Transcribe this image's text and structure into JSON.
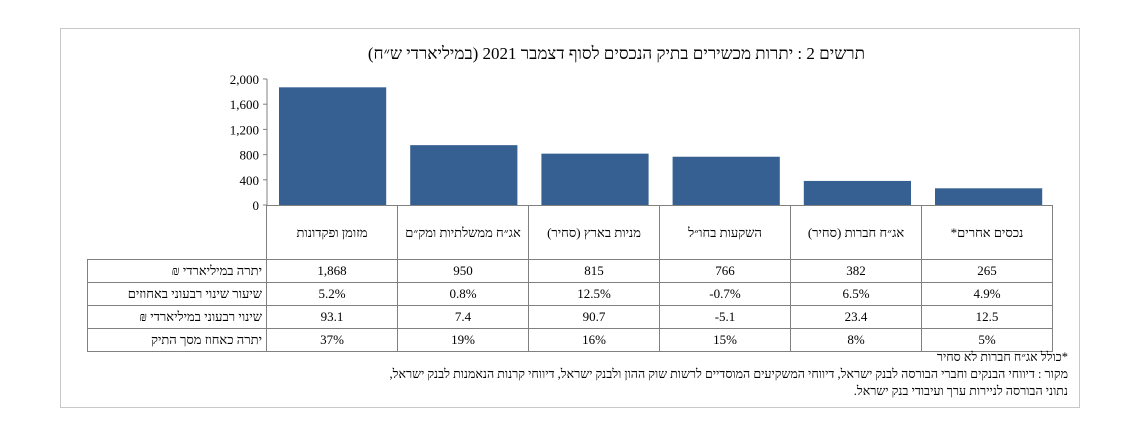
{
  "chart_data": {
    "type": "bar",
    "title": "תרשים 2 : יתרות מכשירים בתיק הנכסים לסוף דצמבר 2021 (במיליארדי ש״ח)",
    "categories": [
      "מזומן ופקדונות",
      "אג״ח ממשלתיות ומק״ם",
      "מניות בארץ (סחיר)",
      "השקעות בחו״ל",
      "אג״ח חברות (סחיר)",
      "נכסים אחרים*"
    ],
    "values": [
      1868,
      950,
      815,
      766,
      382,
      265
    ],
    "ylim": [
      0,
      2000
    ],
    "yticks": [
      "0",
      "400",
      "800",
      "1,200",
      "1,600",
      "2,000"
    ],
    "ytick_values": [
      0,
      400,
      800,
      1200,
      1600,
      2000
    ],
    "bar_color": "#366092",
    "table": {
      "rows": [
        {
          "label": "יתרה במיליארדי ₪",
          "values": [
            "1,868",
            "950",
            "815",
            "766",
            "382",
            "265"
          ]
        },
        {
          "label": "שיעור שינוי רבעוני באחוזים",
          "values": [
            "5.2%",
            "0.8%",
            "12.5%",
            "-0.7%",
            "6.5%",
            "4.9%"
          ]
        },
        {
          "label": "שינוי רבעוני במיליארדי ₪",
          "values": [
            "93.1",
            "7.4",
            "90.7",
            "-5.1",
            "23.4",
            "12.5"
          ]
        },
        {
          "label": "יתרה כאחוז מסך התיק",
          "values": [
            "37%",
            "19%",
            "16%",
            "15%",
            "8%",
            "5%"
          ]
        }
      ]
    }
  },
  "notes": [
    "*כולל אג״ח חברות לא סחיר",
    "מקור : דיווחי הבנקים וחברי הבורסה לבנק ישראל, דיווחי המשקיעים המוסדיים לרשות שוק ההון ולבנק ישראל, דיווחי קרנות הנאמנות לבנק ישראל,",
    "נתוני הבורסה לניירות ערך ועיבודי בנק ישראל."
  ]
}
